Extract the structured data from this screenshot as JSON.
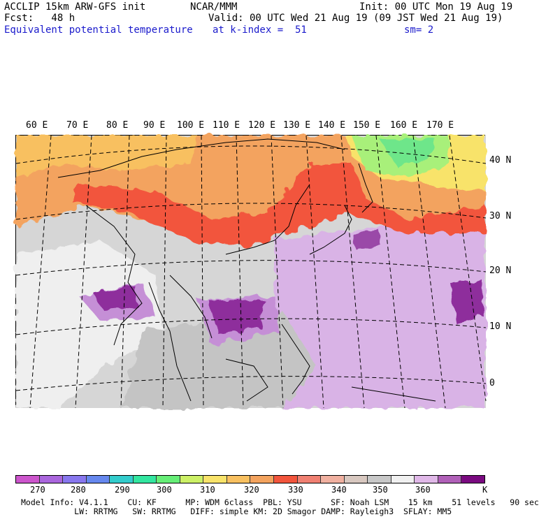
{
  "header": {
    "model": "ACCLIP 15km ARW-GFS init",
    "center": "NCAR/MMM",
    "init": "Init: 00 UTC Mon 19 Aug 19",
    "fcst": "Fcst:   48 h",
    "valid": "Valid: 00 UTC Wed 21 Aug 19 (09 JST Wed 21 Aug 19)",
    "field": "Equivalent potential temperature",
    "level": "at k-index =  51",
    "smooth": "sm= 2"
  },
  "map": {
    "lon_labels": [
      "60 E",
      "70 E",
      "80 E",
      "90 E",
      "100 E",
      "110 E",
      "120 E",
      "130 E",
      "140 E",
      "150 E",
      "160 E",
      "170 E"
    ],
    "lat_labels": [
      "40 N",
      "30 N",
      "20 N",
      "10 N",
      "0"
    ],
    "colors": {
      "ocean_purple": "#d9b3e6",
      "gray_band": "#bdbdbd",
      "warm_orange": "#f3a35e",
      "red_band": "#f2553c",
      "yellow": "#f8e36a",
      "green": "#6ee68a",
      "deep_purple": "#8e2f9c"
    }
  },
  "colorbar": {
    "colors": [
      "#cc55cc",
      "#aa66dd",
      "#8877ee",
      "#6688ee",
      "#33cccc",
      "#33e6a0",
      "#66ee77",
      "#ccf066",
      "#f8e36a",
      "#f8c060",
      "#f3a35e",
      "#f2553c",
      "#f08072",
      "#f0b0a0",
      "#d8c8c0",
      "#c8c8c8",
      "#f0f0f0",
      "#e0b8e8",
      "#b060b8",
      "#7a0a80"
    ],
    "ticks": [
      "270",
      "280",
      "290",
      "300",
      "310",
      "320",
      "330",
      "340",
      "350",
      "360"
    ],
    "unit": "K"
  },
  "footer": {
    "line1": "Model Info: V4.1.1    CU: KF      MP: WDM 6class  PBL: YSU      SF: Noah LSM    15 km    51 levels   90 sec",
    "line2": "           LW: RRTMG   SW: RRTMG   DIFF: simple KM: 2D Smagor DAMP: Rayleigh3  SFLAY: MM5"
  }
}
